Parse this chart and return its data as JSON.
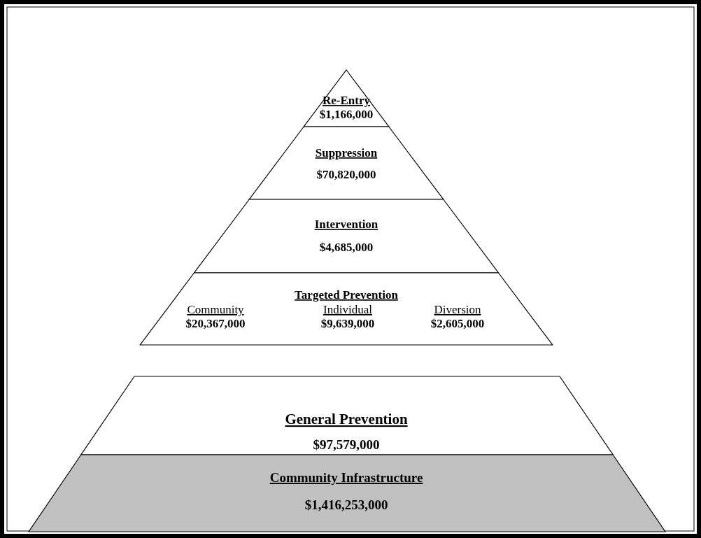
{
  "chart_data": {
    "type": "other",
    "categories": [
      "Re-Entry",
      "Suppression",
      "Intervention",
      "Community",
      "Individual",
      "Diversion",
      "General Prevention",
      "Community Infrastructure"
    ],
    "values": [
      1166000,
      70820000,
      4685000,
      20367000,
      9639000,
      2605000,
      97579000,
      1416253000
    ],
    "value_labels": [
      "$1,166,000",
      "$70,820,000",
      "$4,685,000",
      "$20,367,000",
      "$9,639,000",
      "$2,605,000",
      "$97,579,000",
      "$1,416,253,000"
    ],
    "colors": [
      "#ffffff",
      "#ffffff",
      "#ffffff",
      "#ffffff",
      "#ffffff",
      "#ffffff",
      "#ffffff",
      "#c0c0c0"
    ],
    "annotations": [
      "Targeted Prevention"
    ]
  }
}
